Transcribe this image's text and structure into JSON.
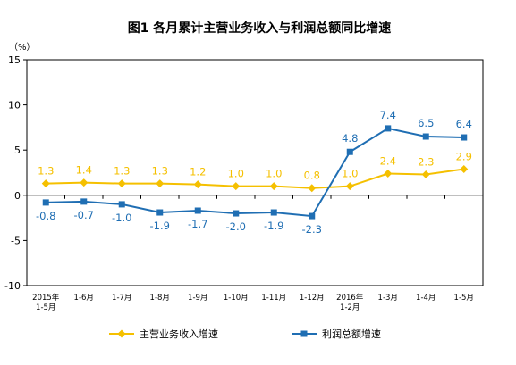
{
  "chart_data": {
    "type": "line",
    "title": "图1  各月累计主营业务收入与利润总额同比增速",
    "unit_label": "（%）",
    "categories": [
      [
        "2015年",
        "1-5月"
      ],
      [
        "1-6月"
      ],
      [
        "1-7月"
      ],
      [
        "1-8月"
      ],
      [
        "1-9月"
      ],
      [
        "1-10月"
      ],
      [
        "1-11月"
      ],
      [
        "1-12月"
      ],
      [
        "2016年",
        "1-2月"
      ],
      [
        "1-3月"
      ],
      [
        "1-4月"
      ],
      [
        "1-5月"
      ]
    ],
    "ylim": [
      -10,
      15
    ],
    "yticks": [
      -10,
      -5,
      0,
      5,
      10,
      15
    ],
    "grid": false,
    "legend_position": "bottom",
    "series": [
      {
        "name": "主营业务收入增速",
        "color": "#F5C000",
        "marker": "diamond",
        "values": [
          1.3,
          1.4,
          1.3,
          1.3,
          1.2,
          1.0,
          1.0,
          0.8,
          1.0,
          2.4,
          2.3,
          2.9
        ],
        "labels": [
          "1.3",
          "1.4",
          "1.3",
          "1.3",
          "1.2",
          "1.0",
          "1.0",
          "0.8",
          "1.0",
          "2.4",
          "2.3",
          "2.9"
        ]
      },
      {
        "name": "利润总额增速",
        "color": "#1F6EB3",
        "marker": "square",
        "values": [
          -0.8,
          -0.7,
          -1.0,
          -1.9,
          -1.7,
          -2.0,
          -1.9,
          -2.3,
          4.8,
          7.4,
          6.5,
          6.4
        ],
        "labels": [
          "-0.8",
          "-0.7",
          "-1.0",
          "-1.9",
          "-1.7",
          "-2.0",
          "-1.9",
          "-2.3",
          "4.8",
          "7.4",
          "6.5",
          "6.4"
        ]
      }
    ]
  }
}
